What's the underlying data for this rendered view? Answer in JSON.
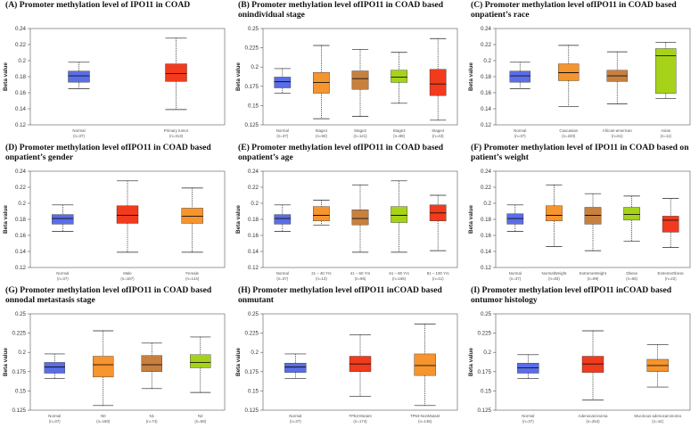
{
  "colors": {
    "blue": "#5a6ee8",
    "red": "#f23a1c",
    "brown": "#c8803f",
    "orange": "#f6942e",
    "green": "#a6d319",
    "axis": "#555555"
  },
  "chart_data": [
    {
      "type": "boxplot",
      "title": "(A) Promoter methylation level of IPO11 in COAD",
      "ylabel": "Beta value",
      "ylim": [
        0.12,
        0.24
      ],
      "yticks": [
        0.12,
        0.14,
        0.16,
        0.18,
        0.2,
        0.22,
        0.24
      ],
      "categories": [
        {
          "name": "Normal",
          "n": "(n=37)",
          "color": "blue",
          "whisker_low": 0.165,
          "q1": 0.173,
          "median": 0.181,
          "q3": 0.187,
          "whisker_high": 0.198
        },
        {
          "name": "Primary tumor",
          "n": "(n=313)",
          "color": "red",
          "whisker_low": 0.139,
          "q1": 0.174,
          "median": 0.184,
          "q3": 0.196,
          "whisker_high": 0.228
        }
      ]
    },
    {
      "type": "boxplot",
      "title": "(B) Promoter methylation level ofIPO11 in COAD based onindividual stage",
      "ylabel": "Beta value",
      "ylim": [
        0.125,
        0.25
      ],
      "yticks": [
        0.125,
        0.15,
        0.175,
        0.2,
        0.225,
        0.25
      ],
      "categories": [
        {
          "name": "Normal",
          "n": "(n=37)",
          "color": "blue",
          "whisker_low": 0.166,
          "q1": 0.173,
          "median": 0.181,
          "q3": 0.187,
          "whisker_high": 0.198
        },
        {
          "name": "Stage1",
          "n": "(n=50)",
          "color": "orange",
          "whisker_low": 0.133,
          "q1": 0.166,
          "median": 0.18,
          "q3": 0.193,
          "whisker_high": 0.228
        },
        {
          "name": "Stage2",
          "n": "(n=121)",
          "color": "brown",
          "whisker_low": 0.136,
          "q1": 0.171,
          "median": 0.185,
          "q3": 0.195,
          "whisker_high": 0.223
        },
        {
          "name": "Stage3",
          "n": "(n=88)",
          "color": "green",
          "whisker_low": 0.153,
          "q1": 0.18,
          "median": 0.187,
          "q3": 0.196,
          "whisker_high": 0.219
        },
        {
          "name": "Stage4",
          "n": "(n=43)",
          "color": "red",
          "whisker_low": 0.131,
          "q1": 0.163,
          "median": 0.178,
          "q3": 0.197,
          "whisker_high": 0.237
        }
      ]
    },
    {
      "type": "boxplot",
      "title": "(C) Promoter methylation level ofIPO11 in COAD based onpatient’s race",
      "ylabel": "Beta value",
      "ylim": [
        0.12,
        0.24
      ],
      "yticks": [
        0.12,
        0.14,
        0.16,
        0.18,
        0.2,
        0.22,
        0.24
      ],
      "categories": [
        {
          "name": "Normal",
          "n": "(n=37)",
          "color": "blue",
          "whisker_low": 0.165,
          "q1": 0.173,
          "median": 0.181,
          "q3": 0.187,
          "whisker_high": 0.198
        },
        {
          "name": "Caucasian",
          "n": "(n=220)",
          "color": "orange",
          "whisker_low": 0.143,
          "q1": 0.175,
          "median": 0.185,
          "q3": 0.196,
          "whisker_high": 0.219
        },
        {
          "name": "African-american",
          "n": "(n=61)",
          "color": "brown",
          "whisker_low": 0.146,
          "q1": 0.174,
          "median": 0.181,
          "q3": 0.188,
          "whisker_high": 0.211
        },
        {
          "name": "Asian",
          "n": "(n=11)",
          "color": "green",
          "whisker_low": 0.153,
          "q1": 0.159,
          "median": 0.206,
          "q3": 0.215,
          "whisker_high": 0.223
        }
      ]
    },
    {
      "type": "boxplot",
      "title": "(D) Promoter methylation level ofIPO11 in COAD based onpatient’s gender",
      "ylabel": "Beta value",
      "ylim": [
        0.12,
        0.24
      ],
      "yticks": [
        0.12,
        0.14,
        0.16,
        0.18,
        0.2,
        0.22,
        0.24
      ],
      "categories": [
        {
          "name": "Normal",
          "n": "(n=37)",
          "color": "blue",
          "whisker_low": 0.165,
          "q1": 0.174,
          "median": 0.181,
          "q3": 0.186,
          "whisker_high": 0.198
        },
        {
          "name": "Male",
          "n": "(n=167)",
          "color": "red",
          "whisker_low": 0.139,
          "q1": 0.175,
          "median": 0.185,
          "q3": 0.197,
          "whisker_high": 0.228
        },
        {
          "name": "Female",
          "n": "(n=144)",
          "color": "orange",
          "whisker_low": 0.139,
          "q1": 0.175,
          "median": 0.184,
          "q3": 0.194,
          "whisker_high": 0.219
        }
      ]
    },
    {
      "type": "boxplot",
      "title": "(E) Promoter methylation level ofIPO11 in COAD based onpatient’s age",
      "ylabel": "Beta value",
      "ylim": [
        0.12,
        0.24
      ],
      "yticks": [
        0.12,
        0.14,
        0.16,
        0.18,
        0.2,
        0.22,
        0.24
      ],
      "categories": [
        {
          "name": "Normal",
          "n": "(n=37)",
          "color": "blue",
          "whisker_low": 0.165,
          "q1": 0.174,
          "median": 0.181,
          "q3": 0.186,
          "whisker_high": 0.198
        },
        {
          "name": "21 – 40 Yrs",
          "n": "(n=13)",
          "color": "orange",
          "whisker_low": 0.173,
          "q1": 0.178,
          "median": 0.185,
          "q3": 0.196,
          "whisker_high": 0.204
        },
        {
          "name": "41 – 60 Yrs",
          "n": "(n=96)",
          "color": "brown",
          "whisker_low": 0.139,
          "q1": 0.173,
          "median": 0.181,
          "q3": 0.192,
          "whisker_high": 0.223
        },
        {
          "name": "61 – 80 Yrs",
          "n": "(n=165)",
          "color": "green",
          "whisker_low": 0.139,
          "q1": 0.176,
          "median": 0.185,
          "q3": 0.196,
          "whisker_high": 0.228
        },
        {
          "name": "81 – 100 Yrs",
          "n": "(n=41)",
          "color": "red",
          "whisker_low": 0.141,
          "q1": 0.178,
          "median": 0.188,
          "q3": 0.198,
          "whisker_high": 0.21
        }
      ]
    },
    {
      "type": "boxplot",
      "title": "(F) Promoter methylation level of IPO11 in COAD based on patient’s weight",
      "ylabel": "Beta value",
      "ylim": [
        0.12,
        0.24
      ],
      "yticks": [
        0.12,
        0.14,
        0.16,
        0.18,
        0.2,
        0.22,
        0.24
      ],
      "categories": [
        {
          "name": "Normal",
          "n": "(n=37)",
          "color": "blue",
          "whisker_low": 0.165,
          "q1": 0.174,
          "median": 0.181,
          "q3": 0.187,
          "whisker_high": 0.198
        },
        {
          "name": "NormalWeight",
          "n": "(n=83)",
          "color": "orange",
          "whisker_low": 0.146,
          "q1": 0.178,
          "median": 0.185,
          "q3": 0.197,
          "whisker_high": 0.223
        },
        {
          "name": "ExtremeWeight",
          "n": "(n=89)",
          "color": "brown",
          "whisker_low": 0.141,
          "q1": 0.174,
          "median": 0.185,
          "q3": 0.195,
          "whisker_high": 0.212
        },
        {
          "name": "Obese",
          "n": "(n=66)",
          "color": "green",
          "whisker_low": 0.153,
          "q1": 0.179,
          "median": 0.186,
          "q3": 0.195,
          "whisker_high": 0.209
        },
        {
          "name": "ExtremeObese",
          "n": "(n=22)",
          "color": "red",
          "whisker_low": 0.145,
          "q1": 0.164,
          "median": 0.179,
          "q3": 0.184,
          "whisker_high": 0.206
        }
      ]
    },
    {
      "type": "boxplot",
      "title": "(G) Promoter methylation level ofIPO11 in COAD based onnodal metastasis stage",
      "ylabel": "Beta value",
      "ylim": [
        0.125,
        0.25
      ],
      "yticks": [
        0.125,
        0.15,
        0.175,
        0.2,
        0.225,
        0.25
      ],
      "categories": [
        {
          "name": "Normal",
          "n": "(n=37)",
          "color": "blue",
          "whisker_low": 0.166,
          "q1": 0.173,
          "median": 0.181,
          "q3": 0.187,
          "whisker_high": 0.198
        },
        {
          "name": "N0",
          "n": "(n=180)",
          "color": "orange",
          "whisker_low": 0.131,
          "q1": 0.168,
          "median": 0.184,
          "q3": 0.195,
          "whisker_high": 0.228
        },
        {
          "name": "N1",
          "n": "(n=74)",
          "color": "brown",
          "whisker_low": 0.153,
          "q1": 0.175,
          "median": 0.184,
          "q3": 0.196,
          "whisker_high": 0.212
        },
        {
          "name": "N2",
          "n": "(n=58)",
          "color": "green",
          "whisker_low": 0.148,
          "q1": 0.18,
          "median": 0.187,
          "q3": 0.197,
          "whisker_high": 0.22
        }
      ]
    },
    {
      "type": "boxplot",
      "title": "(H) Promoter methylation level ofIPO11 inCOAD based onmutant",
      "ylabel": "Beta value",
      "ylim": [
        0.125,
        0.25
      ],
      "yticks": [
        0.125,
        0.15,
        0.175,
        0.2,
        0.225,
        0.25
      ],
      "categories": [
        {
          "name": "Normal",
          "n": "(n=37)",
          "color": "blue",
          "whisker_low": 0.166,
          "q1": 0.174,
          "median": 0.181,
          "q3": 0.186,
          "whisker_high": 0.198
        },
        {
          "name": "TP53-Mutant",
          "n": "(n=174)",
          "color": "red",
          "whisker_low": 0.143,
          "q1": 0.175,
          "median": 0.185,
          "q3": 0.195,
          "whisker_high": 0.223
        },
        {
          "name": "TP53-NonMutant",
          "n": "(n=136)",
          "color": "orange",
          "whisker_low": 0.131,
          "q1": 0.17,
          "median": 0.183,
          "q3": 0.198,
          "whisker_high": 0.237
        }
      ]
    },
    {
      "type": "boxplot",
      "title": "(I) Promoter methylation level ofIPO11 inCOAD based ontumor histology",
      "ylabel": "Beta value",
      "ylim": [
        0.125,
        0.25
      ],
      "yticks": [
        0.125,
        0.15,
        0.175,
        0.2,
        0.225,
        0.25
      ],
      "categories": [
        {
          "name": "Normal",
          "n": "(n=37)",
          "color": "blue",
          "whisker_low": 0.166,
          "q1": 0.173,
          "median": 0.18,
          "q3": 0.186,
          "whisker_high": 0.197
        },
        {
          "name": "Adenocarcinoma",
          "n": "(n=264)",
          "color": "red",
          "whisker_low": 0.138,
          "q1": 0.174,
          "median": 0.185,
          "q3": 0.195,
          "whisker_high": 0.228
        },
        {
          "name": "Mucinous adenocarcinoma",
          "n": "(n=44)",
          "color": "orange",
          "whisker_low": 0.155,
          "q1": 0.175,
          "median": 0.183,
          "q3": 0.191,
          "whisker_high": 0.21
        }
      ]
    }
  ]
}
